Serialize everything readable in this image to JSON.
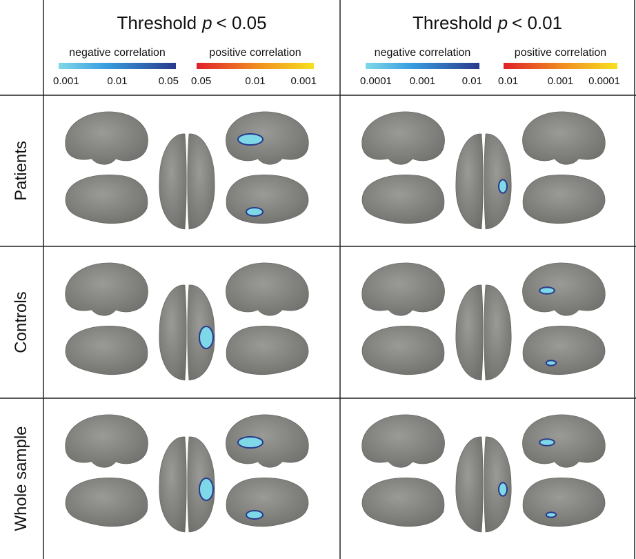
{
  "columns": [
    {
      "title": "Threshold",
      "italic": "p",
      "threshold": "< 0.05",
      "negative": {
        "label": "negative correlation",
        "ticks": [
          "0.001",
          "0.01",
          "0.05"
        ]
      },
      "positive": {
        "label": "positive correlation",
        "ticks": [
          "0.05",
          "0.01",
          "0.001"
        ]
      }
    },
    {
      "title": "Threshold",
      "italic": "p",
      "threshold": "< 0.01",
      "negative": {
        "label": "negative correlation",
        "ticks": [
          "0.0001",
          "0.001",
          "0.01"
        ]
      },
      "positive": {
        "label": "positive correlation",
        "ticks": [
          "0.01",
          "0.001",
          "0.0001"
        ]
      }
    }
  ],
  "rows": [
    "Patients",
    "Controls",
    "Whole sample"
  ]
}
